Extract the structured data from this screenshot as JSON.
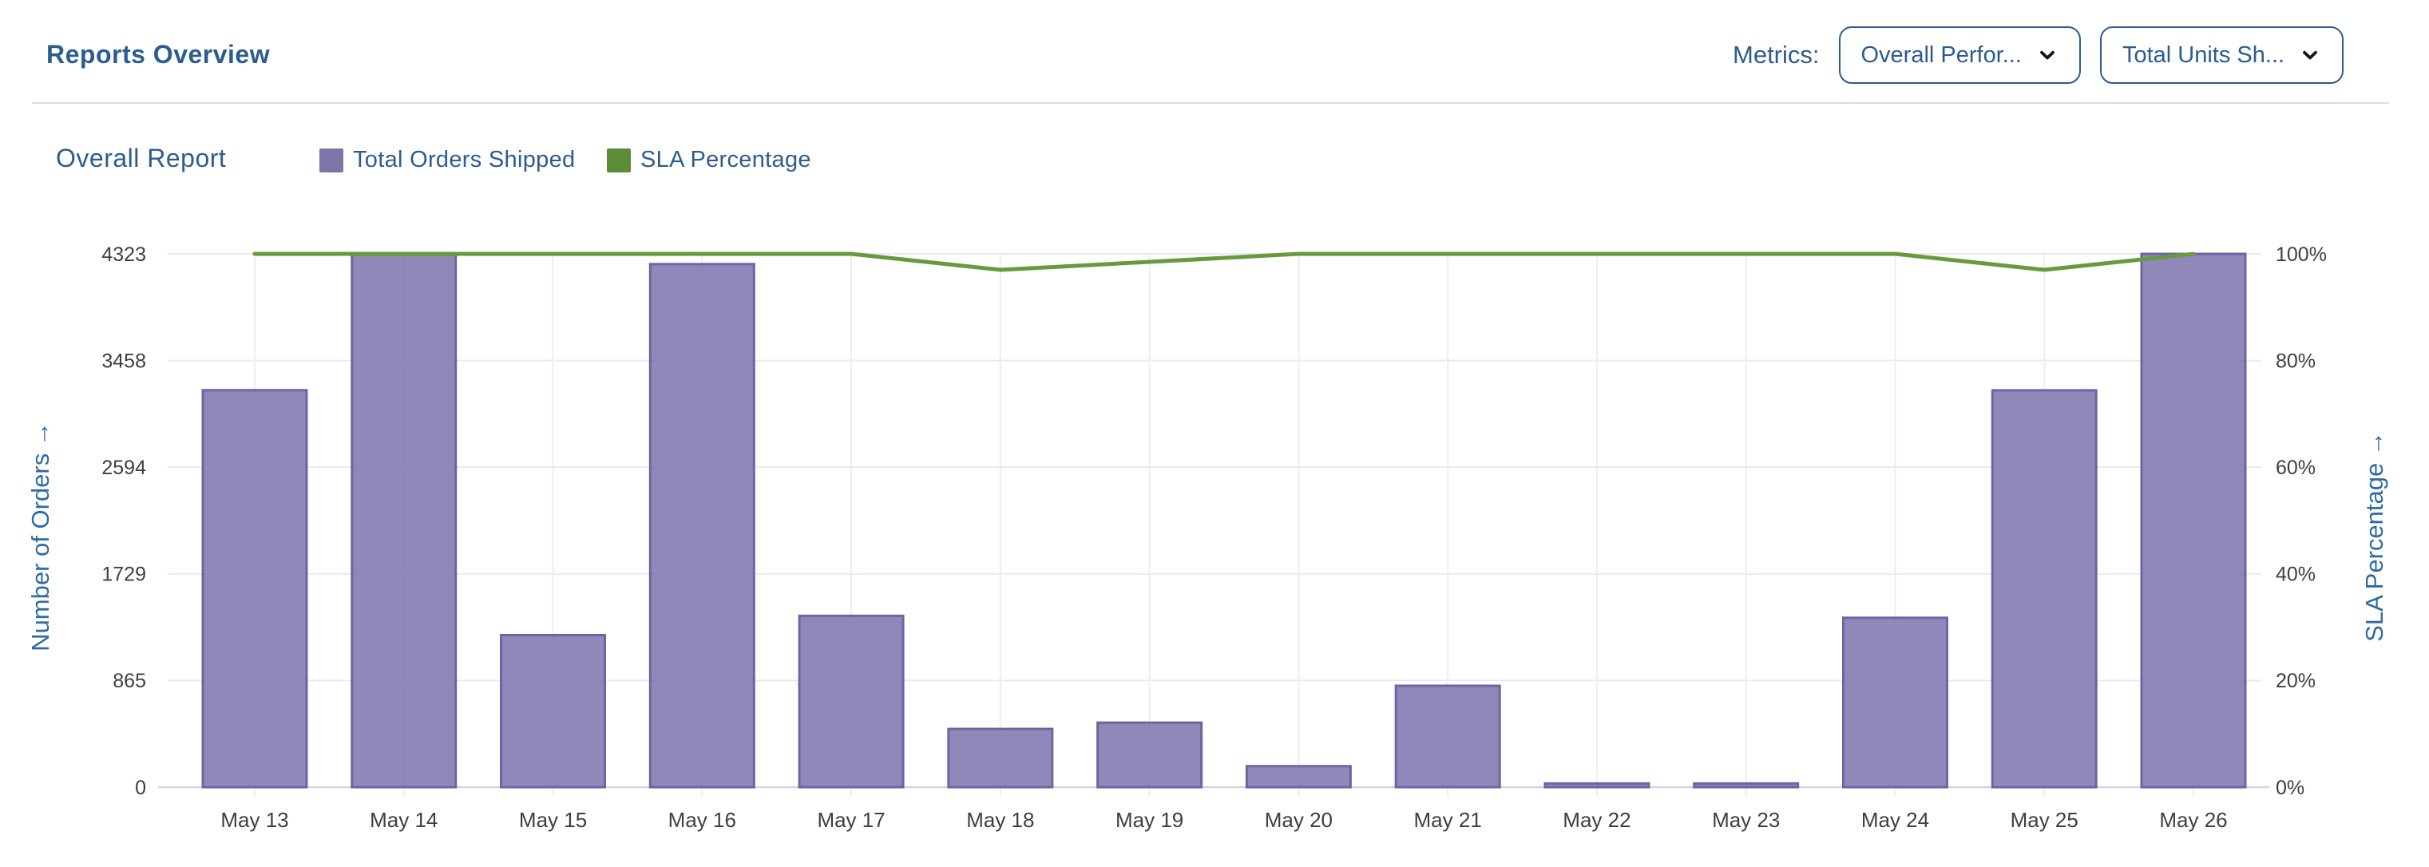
{
  "header": {
    "title": "Reports Overview",
    "metrics_label": "Metrics:",
    "metric_dropdowns": [
      {
        "label": "Overall Perfor..."
      },
      {
        "label": "Total Units Sh..."
      }
    ]
  },
  "report": {
    "title": "Overall Report",
    "legend": [
      {
        "label": "Total Orders Shipped",
        "color": "#7d74aa"
      },
      {
        "label": "SLA Percentage",
        "color": "#5d8c36"
      }
    ]
  },
  "colors": {
    "accent_blue": "#2d5c8e",
    "axis_title_blue": "#2e6ba3",
    "tick_text": "#3f3f3f",
    "bar_fill": "#7c73ab",
    "bar_border": "#6d64a6",
    "line_green": "#68993f",
    "grid_horizontal": "#e9e9f1",
    "grid_vertical": "#ededf4",
    "axis_baseline": "#d4d4de"
  },
  "chart_data": {
    "type": "bar",
    "title": "Overall Report",
    "categories": [
      "May 13",
      "May 14",
      "May 15",
      "May 16",
      "May 17",
      "May 18",
      "May 19",
      "May 20",
      "May 21",
      "May 22",
      "May 23",
      "May 24",
      "May 25",
      "May 26"
    ],
    "series": [
      {
        "name": "Total Orders Shipped",
        "type": "bar",
        "axis": "left",
        "values": [
          3218,
          4323,
          1233,
          4240,
          1389,
          472,
          523,
          170,
          822,
          30,
          30,
          1373,
          3217,
          4323
        ]
      },
      {
        "name": "SLA Percentage",
        "type": "line",
        "axis": "right",
        "values": [
          100,
          100,
          100,
          100,
          100,
          97,
          98.5,
          100,
          100,
          100,
          100,
          100,
          97,
          100
        ]
      }
    ],
    "left_axis": {
      "label": "Number of Orders  →",
      "ticks": [
        4323,
        3458,
        2594,
        1729,
        865,
        0
      ],
      "ylim": [
        0,
        4323
      ]
    },
    "right_axis": {
      "label": "SLA Percentage  →",
      "ticks": [
        "100%",
        "80%",
        "60%",
        "40%",
        "20%",
        "0%"
      ],
      "tick_values": [
        100,
        80,
        60,
        40,
        20,
        0
      ],
      "ylim": [
        0,
        100
      ]
    },
    "grid": true,
    "legend_position": "top"
  }
}
